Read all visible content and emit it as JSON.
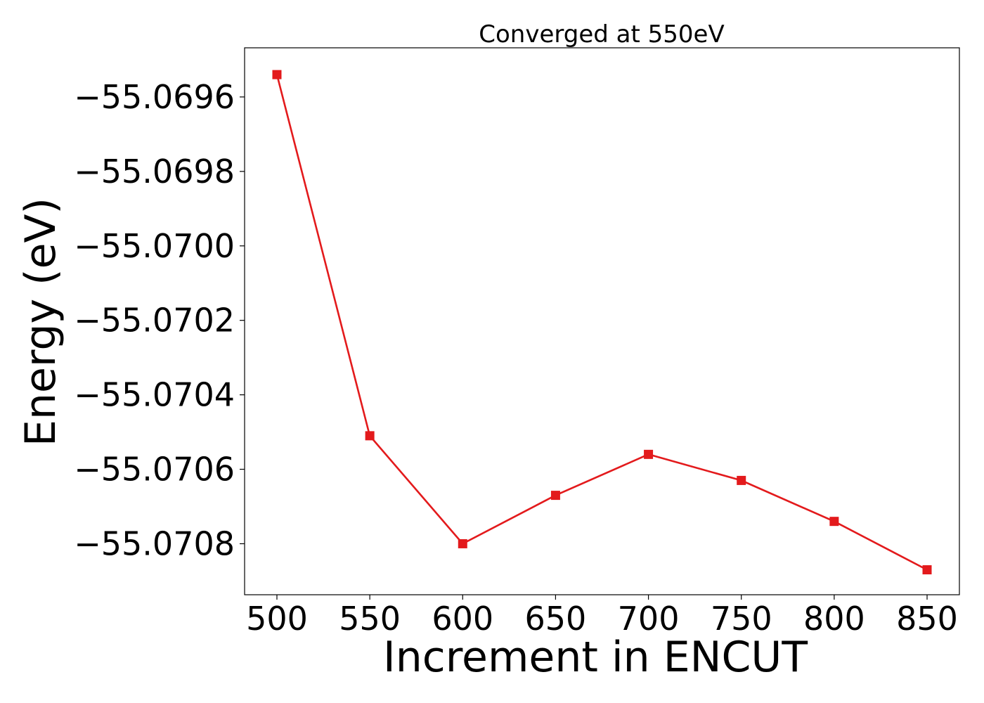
{
  "chart_data": {
    "type": "line",
    "title": "Converged at 550eV",
    "xlabel": "Increment in ENCUT",
    "ylabel": "Energy (eV)",
    "x": [
      500,
      550,
      600,
      650,
      700,
      750,
      800,
      850
    ],
    "series": [
      {
        "values": [
          -55.06954,
          -55.07051,
          -55.0708,
          -55.07067,
          -55.07056,
          -55.07063,
          -55.07074,
          -55.07087
        ],
        "color": "#e31a1c",
        "marker": "square"
      }
    ],
    "xticks": [
      "500",
      "550",
      "600",
      "650",
      "700",
      "750",
      "800",
      "850"
    ],
    "xtick_values": [
      500,
      550,
      600,
      650,
      700,
      750,
      800,
      850
    ],
    "yticks": [
      "−55.0696",
      "−55.0698",
      "−55.0700",
      "−55.0702",
      "−55.0704",
      "−55.0706",
      "−55.0708"
    ],
    "ytick_values": [
      -55.0696,
      -55.0698,
      -55.07,
      -55.0702,
      -55.0704,
      -55.0706,
      -55.0708
    ],
    "xlim": [
      482.6,
      867.4
    ],
    "ylim": [
      -55.070937,
      -55.069468
    ],
    "grid": false,
    "legend": "none"
  }
}
